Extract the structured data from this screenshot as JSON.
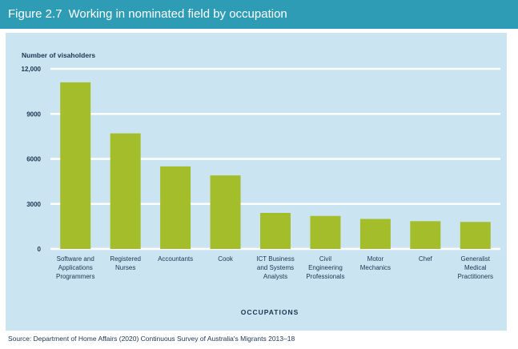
{
  "header": {
    "figure_number": "Figure 2.7",
    "title": "Working in nominated field by occupation"
  },
  "source_note": "Source: Department of Home Affairs (2020) Continuous Survey of Australia's Migrants 2013–18",
  "colors": {
    "header_bg": "#2e9cb4",
    "panel_bg": "#cbe4f2",
    "bar": "#a3be2a",
    "grid": "#ffffff",
    "text": "#1c3550"
  },
  "chart_data": {
    "type": "bar",
    "title": "Working in nominated field by occupation",
    "ylabel": "Number of visaholders",
    "xlabel": "OCCUPATIONS",
    "ylim": [
      0,
      12000
    ],
    "yticks": [
      0,
      3000,
      6000,
      9000,
      12000
    ],
    "ytick_labels": [
      "0",
      "3000",
      "6000",
      "9000",
      "12,000"
    ],
    "grid": true,
    "categories": [
      [
        "Software and",
        "Applications",
        "Programmers"
      ],
      [
        "Registered",
        "Nurses"
      ],
      [
        "Accountants"
      ],
      [
        "Cook"
      ],
      [
        "ICT Business",
        "and Systems",
        "Analysts"
      ],
      [
        "Civil",
        "Engineering",
        "Professionals"
      ],
      [
        "Motor",
        "Mechanics"
      ],
      [
        "Chef"
      ],
      [
        "Generalist",
        "Medical",
        "Practitioners"
      ]
    ],
    "values": [
      11100,
      7700,
      5500,
      4900,
      2400,
      2200,
      2000,
      1850,
      1800
    ]
  }
}
